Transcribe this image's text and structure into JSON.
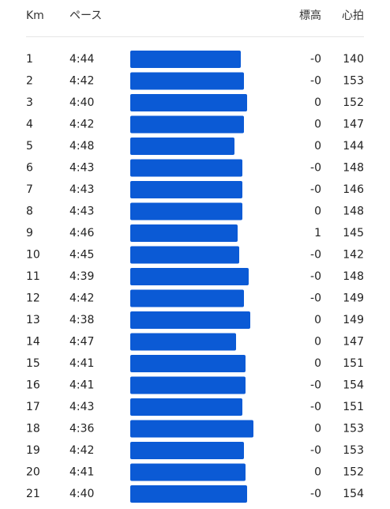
{
  "header": {
    "km": "Km",
    "pace": "ペース",
    "elevation": "標高",
    "heart_rate": "心拍"
  },
  "table": {
    "rows": [
      [
        1,
        "4:44",
        "-0",
        140
      ],
      [
        2,
        "4:42",
        "-0",
        153
      ],
      [
        3,
        "4:40",
        "0",
        152
      ],
      [
        4,
        "4:42",
        "0",
        147
      ],
      [
        5,
        "4:48",
        "0",
        144
      ],
      [
        6,
        "4:43",
        "-0",
        148
      ],
      [
        7,
        "4:43",
        "-0",
        146
      ],
      [
        8,
        "4:43",
        "0",
        148
      ],
      [
        9,
        "4:46",
        "1",
        145
      ],
      [
        10,
        "4:45",
        "-0",
        142
      ],
      [
        11,
        "4:39",
        "-0",
        148
      ],
      [
        12,
        "4:42",
        "-0",
        149
      ],
      [
        13,
        "4:38",
        "0",
        149
      ],
      [
        14,
        "4:47",
        "0",
        147
      ],
      [
        15,
        "4:41",
        "0",
        151
      ],
      [
        16,
        "4:41",
        "-0",
        154
      ],
      [
        17,
        "4:43",
        "-0",
        151
      ],
      [
        18,
        "4:36",
        "0",
        153
      ],
      [
        19,
        "4:42",
        "-0",
        153
      ],
      [
        20,
        "4:41",
        "0",
        152
      ],
      [
        21,
        "4:40",
        "-0",
        154
      ]
    ]
  }
}
